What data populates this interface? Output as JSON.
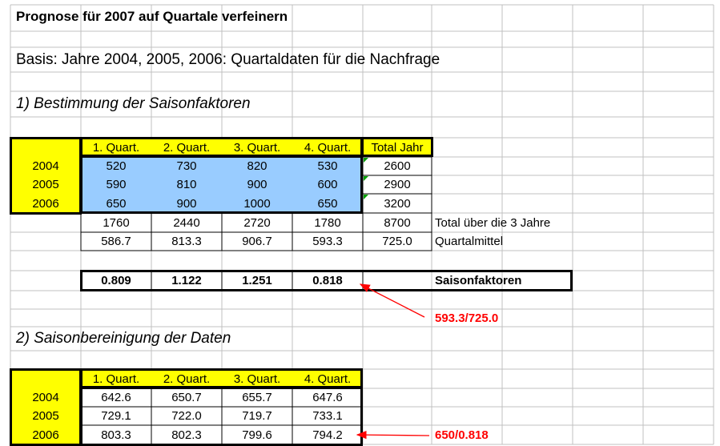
{
  "title": "Prognose für 2007 auf Quartale verfeinern",
  "subtitle": "Basis: Jahre 2004, 2005, 2006: Quartaldaten für die Nachfrage",
  "section1": {
    "heading": "1) Bestimmung der Saisonfaktoren",
    "headers": [
      "1. Quart.",
      "2. Quart.",
      "3. Quart.",
      "4. Quart.",
      "Total Jahr"
    ],
    "years": [
      "2004",
      "2005",
      "2006"
    ],
    "rows": [
      [
        "520",
        "730",
        "820",
        "530",
        "2600"
      ],
      [
        "590",
        "810",
        "900",
        "600",
        "2900"
      ],
      [
        "650",
        "900",
        "1000",
        "650",
        "3200"
      ]
    ],
    "totals": [
      "1760",
      "2440",
      "2720",
      "1780",
      "8700"
    ],
    "totals_label": "Total über die 3 Jahre",
    "means": [
      "586.7",
      "813.3",
      "906.7",
      "593.3",
      "725.0"
    ],
    "means_label": "Quartalmittel",
    "factors": [
      "0.809",
      "1.122",
      "1.251",
      "0.818"
    ],
    "factors_label": "Saisonfaktoren",
    "annotation": "593.3/725.0"
  },
  "section2": {
    "heading": "2) Saisonbereinigung der Daten",
    "headers": [
      "1. Quart.",
      "2. Quart.",
      "3. Quart.",
      "4. Quart."
    ],
    "years": [
      "2004",
      "2005",
      "2006"
    ],
    "rows": [
      [
        "642.6",
        "650.7",
        "655.7",
        "647.6"
      ],
      [
        "729.1",
        "722.0",
        "719.7",
        "733.1"
      ],
      [
        "803.3",
        "802.3",
        "799.6",
        "794.2"
      ]
    ],
    "annotation": "650/0.818"
  },
  "colors": {
    "header_fill": "#ffff00",
    "data_fill": "#99ccff",
    "annotation": "#ff0000",
    "gridline": "#c0c0c0"
  }
}
